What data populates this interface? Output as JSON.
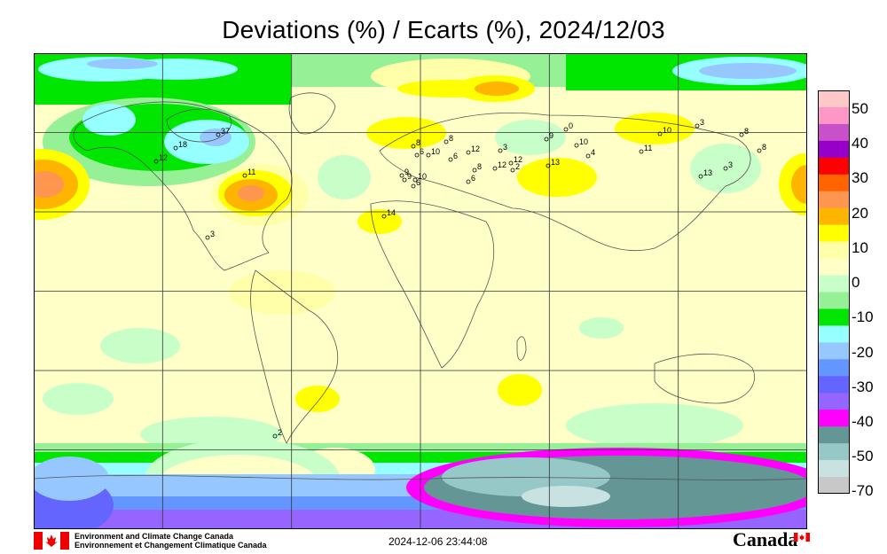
{
  "title": "Deviations (%) / Ecarts (%), 2024/12/03",
  "legend": {
    "labels": [
      "50",
      "40",
      "30",
      "20",
      "10",
      "0",
      "-10",
      "-20",
      "-30",
      "-40",
      "-50",
      "-70"
    ],
    "colors": [
      "#ffc8c8",
      "#ff96c8",
      "#c850c8",
      "#9600c8",
      "#ff0000",
      "#ff6400",
      "#ff9650",
      "#ffb400",
      "#ffff00",
      "#ffffaa",
      "#ffffc8",
      "#c8ffc8",
      "#96f096",
      "#00e600",
      "#96ffff",
      "#96c8ff",
      "#6496ff",
      "#6464ff",
      "#9664ff",
      "#ff00ff",
      "#649696",
      "#96c8c8",
      "#c8e1e1",
      "#c8c8c8"
    ]
  },
  "stations": [
    {
      "label": "37"
    },
    {
      "label": "18"
    },
    {
      "label": "12"
    },
    {
      "label": "11"
    },
    {
      "label": "8"
    },
    {
      "label": "6"
    },
    {
      "label": "12"
    },
    {
      "label": "10"
    },
    {
      "label": "9"
    },
    {
      "label": "8"
    },
    {
      "label": "12"
    },
    {
      "label": "12"
    },
    {
      "label": "6"
    },
    {
      "label": "8"
    },
    {
      "label": "6"
    },
    {
      "label": "3"
    },
    {
      "label": "13"
    },
    {
      "label": "9"
    },
    {
      "label": "10"
    },
    {
      "label": "0"
    },
    {
      "label": "4"
    },
    {
      "label": "10"
    },
    {
      "label": "11"
    },
    {
      "label": "3"
    },
    {
      "label": "8"
    },
    {
      "label": "8"
    },
    {
      "label": "13"
    },
    {
      "label": "3"
    },
    {
      "label": "14"
    },
    {
      "label": "9"
    },
    {
      "label": "10"
    },
    {
      "label": "6"
    },
    {
      "label": "2"
    },
    {
      "label": "3"
    },
    {
      "label": "2"
    }
  ],
  "footer": {
    "org_en": "Environment and Climate Change Canada",
    "org_fr": "Environnement et Changement Climatique Canada",
    "timestamp": "2024-12-06 23:44:08",
    "wordmark": "Canada"
  }
}
